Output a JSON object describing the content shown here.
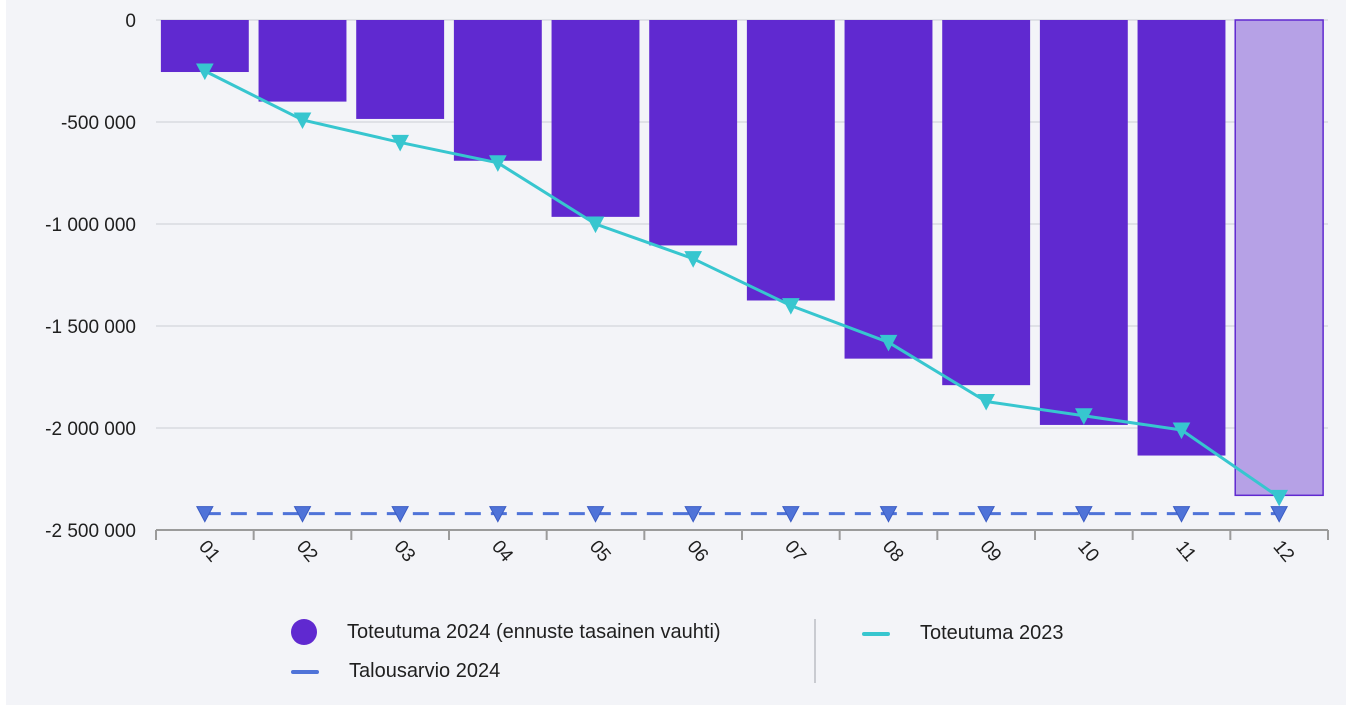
{
  "chart_data": {
    "type": "bar",
    "categories": [
      "01",
      "02",
      "03",
      "04",
      "05",
      "06",
      "07",
      "08",
      "09",
      "10",
      "11",
      "12"
    ],
    "ylim": [
      -2500000,
      0
    ],
    "yticks": [
      0,
      -500000,
      -1000000,
      -1500000,
      -2000000,
      -2500000
    ],
    "ytick_labels": [
      "0",
      "-500 000",
      "-1 000 000",
      "-1 500 000",
      "-2 000 000",
      "-2 500 000"
    ],
    "grid": true,
    "legend_position": "bottom",
    "series": [
      {
        "name": "Toteutuma 2024 (ennuste tasainen vauhti)",
        "kind": "bar",
        "color": "#6029d0",
        "forecast_color": "#b6a1e6",
        "forecast_categories": [
          "12"
        ],
        "values": [
          -255000,
          -400000,
          -485000,
          -690000,
          -965000,
          -1105000,
          -1375000,
          -1660000,
          -1790000,
          -1985000,
          -2135000,
          -2330000
        ]
      },
      {
        "name": "Toteutuma 2023",
        "kind": "line",
        "color": "#37c6cf",
        "marker": "triangle-down",
        "values": [
          -250000,
          -490000,
          -600000,
          -700000,
          -1000000,
          -1170000,
          -1400000,
          -1580000,
          -1870000,
          -1940000,
          -2010000,
          -2340000
        ]
      },
      {
        "name": "Talousarvio 2024",
        "kind": "line",
        "dashed": true,
        "color": "#4f73d8",
        "marker": "triangle-down",
        "values": [
          -2420000,
          -2420000,
          -2420000,
          -2420000,
          -2420000,
          -2420000,
          -2420000,
          -2420000,
          -2420000,
          -2420000,
          -2420000,
          -2420000
        ]
      }
    ]
  },
  "legend": {
    "items": [
      {
        "label": "Toteutuma 2024 (ennuste tasainen vauhti)",
        "symbol": "dot",
        "color": "#6029d0"
      },
      {
        "label": "Talousarvio 2024",
        "symbol": "line",
        "color": "#4f73d8"
      },
      {
        "label": "Toteutuma 2023",
        "symbol": "line",
        "color": "#37c6cf"
      }
    ]
  }
}
